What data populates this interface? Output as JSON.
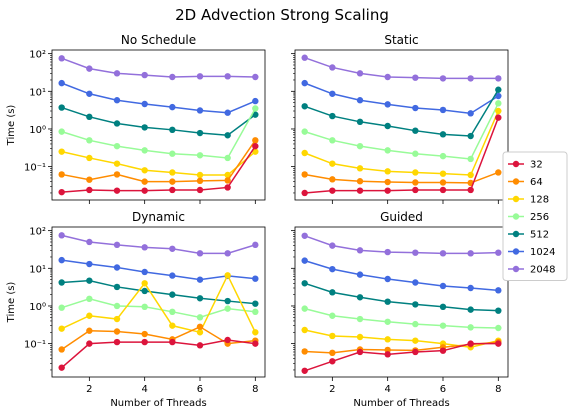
{
  "figure": {
    "suptitle": "2D Advection Strong Scaling"
  },
  "chart_data": {
    "type": "line",
    "y_scale": "log",
    "x": [
      1,
      2,
      3,
      4,
      5,
      6,
      7,
      8
    ],
    "xlabel": "Number of Threads",
    "ylabel": "Time (s)",
    "x_ticks": [
      2,
      4,
      6,
      8
    ],
    "x_tick_labels": [
      "2",
      "4",
      "6",
      "8"
    ],
    "y_ticks": [
      0.1,
      1,
      10,
      100
    ],
    "y_tick_labels": [
      "10⁻¹",
      "10⁰",
      "10¹",
      "10²"
    ],
    "legend": {
      "placement": "right",
      "entries": [
        {
          "name": "32",
          "color": "#dc143c"
        },
        {
          "name": "64",
          "color": "#ff8c00"
        },
        {
          "name": "128",
          "color": "#ffd700"
        },
        {
          "name": "256",
          "color": "#98fb98"
        },
        {
          "name": "512",
          "color": "#008080"
        },
        {
          "name": "1024",
          "color": "#4169e1"
        },
        {
          "name": "2048",
          "color": "#9370db"
        }
      ]
    },
    "panels": [
      {
        "title": "No Schedule",
        "series": [
          {
            "name": "32",
            "values": [
              0.021,
              0.024,
              0.023,
              0.023,
              0.024,
              0.024,
              0.028,
              0.35
            ]
          },
          {
            "name": "64",
            "values": [
              0.062,
              0.045,
              0.062,
              0.04,
              0.04,
              0.042,
              0.043,
              0.5
            ]
          },
          {
            "name": "128",
            "values": [
              0.25,
              0.17,
              0.12,
              0.08,
              0.07,
              0.06,
              0.06,
              0.25
            ]
          },
          {
            "name": "256",
            "values": [
              0.85,
              0.5,
              0.35,
              0.27,
              0.22,
              0.2,
              0.17,
              3.5
            ]
          },
          {
            "name": "512",
            "values": [
              3.7,
              2.1,
              1.4,
              1.1,
              0.95,
              0.78,
              0.68,
              2.4
            ]
          },
          {
            "name": "1024",
            "values": [
              16.5,
              8.6,
              5.8,
              4.6,
              3.8,
              3.1,
              2.7,
              5.5
            ]
          },
          {
            "name": "2048",
            "values": [
              75,
              40,
              30,
              27,
              24,
              25,
              25,
              24
            ]
          }
        ]
      },
      {
        "title": "Static",
        "series": [
          {
            "name": "32",
            "values": [
              0.02,
              0.023,
              0.023,
              0.023,
              0.024,
              0.024,
              0.024,
              2.0
            ]
          },
          {
            "name": "64",
            "values": [
              0.062,
              0.046,
              0.041,
              0.039,
              0.038,
              0.038,
              0.037,
              0.07
            ]
          },
          {
            "name": "128",
            "values": [
              0.23,
              0.12,
              0.09,
              0.075,
              0.07,
              0.065,
              0.06,
              3.0
            ]
          },
          {
            "name": "256",
            "values": [
              0.85,
              0.5,
              0.35,
              0.27,
              0.22,
              0.19,
              0.16,
              4.8
            ]
          },
          {
            "name": "512",
            "values": [
              4.0,
              2.2,
              1.55,
              1.2,
              0.9,
              0.72,
              0.65,
              11.0
            ]
          },
          {
            "name": "1024",
            "values": [
              16.5,
              8.6,
              5.8,
              4.5,
              3.6,
              3.2,
              2.6,
              7.5
            ]
          },
          {
            "name": "2048",
            "values": [
              78,
              43,
              30,
              24,
              23,
              22,
              22,
              22
            ]
          }
        ]
      },
      {
        "title": "Dynamic",
        "series": [
          {
            "name": "32",
            "values": [
              0.023,
              0.1,
              0.11,
              0.11,
              0.11,
              0.09,
              0.125,
              0.1
            ]
          },
          {
            "name": "64",
            "values": [
              0.07,
              0.22,
              0.21,
              0.18,
              0.13,
              0.28,
              0.1,
              0.12
            ]
          },
          {
            "name": "128",
            "values": [
              0.25,
              0.55,
              0.45,
              4.0,
              0.3,
              0.2,
              6.5,
              0.2
            ]
          },
          {
            "name": "256",
            "values": [
              0.9,
              1.55,
              1.0,
              0.95,
              0.7,
              0.5,
              0.85,
              0.7
            ]
          },
          {
            "name": "512",
            "values": [
              4.2,
              4.7,
              3.2,
              2.5,
              2.0,
              1.6,
              1.35,
              1.15
            ]
          },
          {
            "name": "1024",
            "values": [
              16.5,
              13.0,
              10.5,
              8.0,
              6.4,
              5.0,
              6.3,
              5.3
            ]
          },
          {
            "name": "2048",
            "values": [
              75,
              50,
              42,
              36,
              33,
              25,
              25,
              42
            ]
          }
        ]
      },
      {
        "title": "Guided",
        "series": [
          {
            "name": "32",
            "values": [
              0.019,
              0.034,
              0.06,
              0.052,
              0.06,
              0.065,
              0.1,
              0.1
            ]
          },
          {
            "name": "64",
            "values": [
              0.062,
              0.057,
              0.07,
              0.068,
              0.066,
              0.08,
              0.095,
              0.11
            ]
          },
          {
            "name": "128",
            "values": [
              0.23,
              0.16,
              0.15,
              0.13,
              0.12,
              0.1,
              0.08,
              0.12
            ]
          },
          {
            "name": "256",
            "values": [
              0.85,
              0.55,
              0.45,
              0.38,
              0.33,
              0.3,
              0.27,
              0.26
            ]
          },
          {
            "name": "512",
            "values": [
              4.0,
              2.3,
              1.7,
              1.3,
              1.1,
              0.95,
              0.8,
              0.75
            ]
          },
          {
            "name": "1024",
            "values": [
              16.0,
              9.5,
              6.8,
              5.2,
              4.2,
              3.4,
              3.0,
              2.6
            ]
          },
          {
            "name": "2048",
            "values": [
              73,
              40,
              30,
              27,
              26,
              25,
              25,
              26
            ]
          }
        ]
      }
    ]
  }
}
